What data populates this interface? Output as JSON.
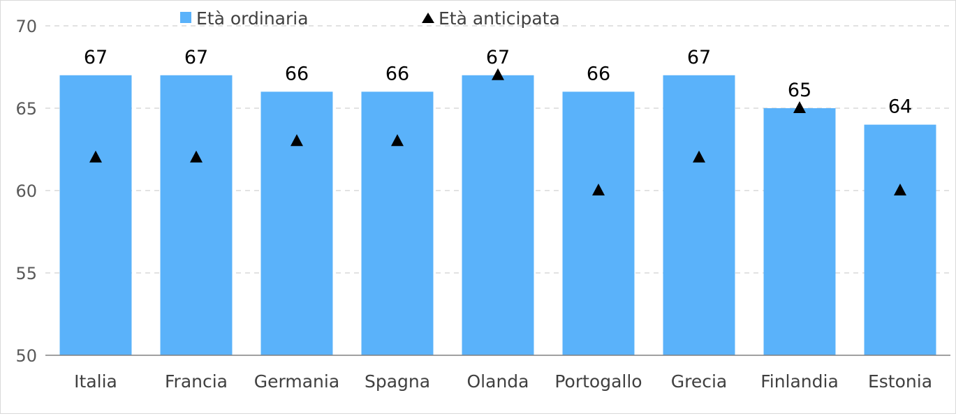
{
  "chart_data": {
    "type": "bar",
    "categories": [
      "Italia",
      "Francia",
      "Germania",
      "Spagna",
      "Olanda",
      "Portogallo",
      "Grecia",
      "Finlandia",
      "Estonia"
    ],
    "series": [
      {
        "name": "Età ordinaria",
        "kind": "bar",
        "color": "#5AB2FA",
        "values": [
          67,
          67,
          66,
          66,
          67,
          66,
          67,
          65,
          64
        ]
      },
      {
        "name": "Età anticipata",
        "kind": "marker",
        "marker": "triangle",
        "color": "#000000",
        "values": [
          62,
          62,
          63,
          63,
          67,
          60,
          62,
          65,
          60
        ]
      }
    ],
    "data_labels": [
      "67",
      "67",
      "66",
      "66",
      "67",
      "66",
      "67",
      "65",
      "64"
    ],
    "y_ticks": [
      "50",
      "55",
      "60",
      "65",
      "70"
    ],
    "ylim": [
      50,
      70
    ],
    "title": "",
    "xlabel": "",
    "ylabel": "",
    "grid": true,
    "legend_position": "top"
  }
}
